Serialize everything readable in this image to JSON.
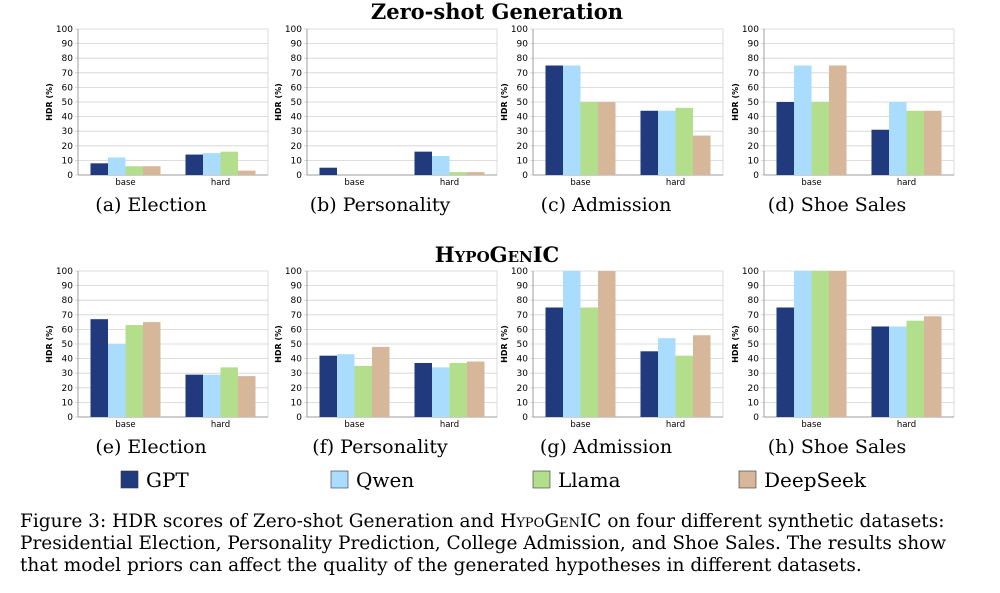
{
  "section_titles": {
    "zero_shot": "Zero-shot Generation",
    "hypogenic": "HypoGenIC"
  },
  "colors": {
    "GPT": "#213a7d",
    "Qwen": "#a9dcfd",
    "Llama": "#b3df8d",
    "DeepSeek": "#d6b79a",
    "grid": "#d2d2d2",
    "axis": "#888888"
  },
  "legend": [
    "GPT",
    "Qwen",
    "Llama",
    "DeepSeek"
  ],
  "caption": {
    "label": "Figure 3:",
    "text1": "HDR scores of Zero-shot Generation and",
    "sc1": "HypoGenIC",
    "text2": "on four different synthetic datasets: Presidential Election, Personality Prediction, College Admission, and Shoe Sales. The results show that model priors can affect the quality of the generated hypotheses in different datasets."
  },
  "chart_data": [
    {
      "type": "bar",
      "panel": "(a) Election",
      "group": "Zero-shot Generation",
      "ylabel": "HDR (%)",
      "ylim": [
        0,
        100
      ],
      "yticks": [
        0,
        10,
        20,
        30,
        40,
        50,
        60,
        70,
        80,
        90,
        100
      ],
      "categories": [
        "base",
        "hard"
      ],
      "series": [
        {
          "name": "GPT",
          "values": [
            8,
            14
          ]
        },
        {
          "name": "Qwen",
          "values": [
            12,
            15
          ]
        },
        {
          "name": "Llama",
          "values": [
            6,
            16
          ]
        },
        {
          "name": "DeepSeek",
          "values": [
            6,
            3
          ]
        }
      ]
    },
    {
      "type": "bar",
      "panel": "(b) Personality",
      "group": "Zero-shot Generation",
      "ylabel": "HDR (%)",
      "ylim": [
        0,
        100
      ],
      "yticks": [
        0,
        10,
        20,
        30,
        40,
        50,
        60,
        70,
        80,
        90,
        100
      ],
      "categories": [
        "base",
        "hard"
      ],
      "series": [
        {
          "name": "GPT",
          "values": [
            5,
            16
          ]
        },
        {
          "name": "Qwen",
          "values": [
            0,
            13
          ]
        },
        {
          "name": "Llama",
          "values": [
            0,
            2
          ]
        },
        {
          "name": "DeepSeek",
          "values": [
            0,
            2
          ]
        }
      ]
    },
    {
      "type": "bar",
      "panel": "(c) Admission",
      "group": "Zero-shot Generation",
      "ylabel": "HDR (%)",
      "ylim": [
        0,
        100
      ],
      "yticks": [
        0,
        10,
        20,
        30,
        40,
        50,
        60,
        70,
        80,
        90,
        100
      ],
      "categories": [
        "base",
        "hard"
      ],
      "series": [
        {
          "name": "GPT",
          "values": [
            75,
            44
          ]
        },
        {
          "name": "Qwen",
          "values": [
            75,
            44
          ]
        },
        {
          "name": "Llama",
          "values": [
            50,
            46
          ]
        },
        {
          "name": "DeepSeek",
          "values": [
            50,
            27
          ]
        }
      ]
    },
    {
      "type": "bar",
      "panel": "(d) Shoe Sales",
      "group": "Zero-shot Generation",
      "ylabel": "HDR (%)",
      "ylim": [
        0,
        100
      ],
      "yticks": [
        0,
        10,
        20,
        30,
        40,
        50,
        60,
        70,
        80,
        90,
        100
      ],
      "categories": [
        "base",
        "hard"
      ],
      "series": [
        {
          "name": "GPT",
          "values": [
            50,
            31
          ]
        },
        {
          "name": "Qwen",
          "values": [
            75,
            50
          ]
        },
        {
          "name": "Llama",
          "values": [
            50,
            44
          ]
        },
        {
          "name": "DeepSeek",
          "values": [
            75,
            44
          ]
        }
      ]
    },
    {
      "type": "bar",
      "panel": "(e) Election",
      "group": "HypoGenIC",
      "ylabel": "HDR (%)",
      "ylim": [
        0,
        100
      ],
      "yticks": [
        0,
        10,
        20,
        30,
        40,
        50,
        60,
        70,
        80,
        90,
        100
      ],
      "categories": [
        "base",
        "hard"
      ],
      "series": [
        {
          "name": "GPT",
          "values": [
            67,
            29
          ]
        },
        {
          "name": "Qwen",
          "values": [
            50,
            29
          ]
        },
        {
          "name": "Llama",
          "values": [
            63,
            34
          ]
        },
        {
          "name": "DeepSeek",
          "values": [
            65,
            28
          ]
        }
      ]
    },
    {
      "type": "bar",
      "panel": "(f) Personality",
      "group": "HypoGenIC",
      "ylabel": "HDR (%)",
      "ylim": [
        0,
        100
      ],
      "yticks": [
        0,
        10,
        20,
        30,
        40,
        50,
        60,
        70,
        80,
        90,
        100
      ],
      "categories": [
        "base",
        "hard"
      ],
      "series": [
        {
          "name": "GPT",
          "values": [
            42,
            37
          ]
        },
        {
          "name": "Qwen",
          "values": [
            43,
            34
          ]
        },
        {
          "name": "Llama",
          "values": [
            35,
            37
          ]
        },
        {
          "name": "DeepSeek",
          "values": [
            48,
            38
          ]
        }
      ]
    },
    {
      "type": "bar",
      "panel": "(g) Admission",
      "group": "HypoGenIC",
      "ylabel": "HDR (%)",
      "ylim": [
        0,
        100
      ],
      "yticks": [
        0,
        10,
        20,
        30,
        40,
        50,
        60,
        70,
        80,
        90,
        100
      ],
      "categories": [
        "base",
        "hard"
      ],
      "series": [
        {
          "name": "GPT",
          "values": [
            75,
            45
          ]
        },
        {
          "name": "Qwen",
          "values": [
            100,
            54
          ]
        },
        {
          "name": "Llama",
          "values": [
            75,
            42
          ]
        },
        {
          "name": "DeepSeek",
          "values": [
            100,
            56
          ]
        }
      ]
    },
    {
      "type": "bar",
      "panel": "(h) Shoe Sales",
      "group": "HypoGenIC",
      "ylabel": "HDR (%)",
      "ylim": [
        0,
        100
      ],
      "yticks": [
        0,
        10,
        20,
        30,
        40,
        50,
        60,
        70,
        80,
        90,
        100
      ],
      "categories": [
        "base",
        "hard"
      ],
      "series": [
        {
          "name": "GPT",
          "values": [
            75,
            62
          ]
        },
        {
          "name": "Qwen",
          "values": [
            100,
            62
          ]
        },
        {
          "name": "Llama",
          "values": [
            100,
            66
          ]
        },
        {
          "name": "DeepSeek",
          "values": [
            100,
            69
          ]
        }
      ]
    }
  ]
}
